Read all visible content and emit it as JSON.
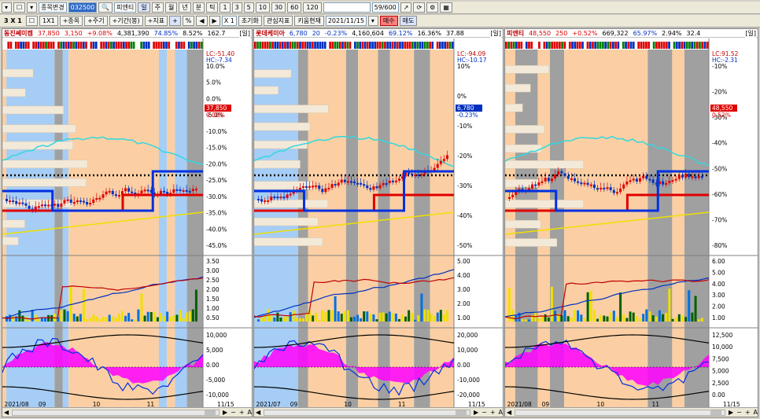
{
  "toolbar1": {
    "stock_change_label": "종목변경",
    "code_value": "032500",
    "name_value": "피엔티",
    "periods": [
      "주",
      "월",
      "년",
      "분",
      "틱"
    ],
    "minutes": [
      "1",
      "3",
      "5",
      "10",
      "30",
      "60",
      "120"
    ],
    "count_value": "59/600"
  },
  "toolbar2": {
    "layout_label": "3 X 1",
    "btn_1x1": "1X1",
    "add_stock": "+종목",
    "add_period": "+주기",
    "add_period_item": "+기간(봉)",
    "add_indicator": "+지표",
    "percent": "%",
    "zoom": "X 1",
    "reset": "초기화",
    "favorite_indicator": "관심지표",
    "keyword": "키움현재",
    "date_value": "2021/11/15",
    "buy": "매수",
    "sell": "매도"
  },
  "colors": {
    "shade_blue": "#a6cdf5",
    "shade_orange": "#fbcfa3",
    "shade_gray": "#a0a0a0",
    "candle_up": "#e00000",
    "candle_down": "#0030c0",
    "line_cyan": "#30d8e0",
    "line_yellow": "#f0e000",
    "line_red": "#e00000",
    "line_blue": "#0030e0",
    "magenta": "#ff00ff"
  },
  "panels": [
    {
      "name": "동진쎄미켐",
      "price": "37,850",
      "change": "3,150",
      "rate": "+9.08%",
      "volume": "4,381,390",
      "pct1": "74.85%",
      "pct2": "8.52%",
      "extra": "162.7",
      "badge": "[일]",
      "lc": "LC:-51.40",
      "hc": "HC:-7.34",
      "price_box": "37,850",
      "price_box2": "9.08%",
      "yticks": [
        "10.0%",
        "5.0%",
        "0.0%",
        "-5.0%",
        "-10.0%",
        "-15.0%",
        "-20.0%",
        "-25.0%",
        "-30.0%",
        "-35.0%",
        "-40.0%",
        "-45.0%"
      ],
      "vticks": [
        "3.50",
        "3.00",
        "2.50",
        "2.00",
        "1.50",
        "1.00",
        "0.50"
      ],
      "oticks": [
        "10,000",
        "5,000",
        "0.00",
        "-5,000",
        "-10,000"
      ],
      "xlabels": [
        "2021/08",
        "09",
        "10",
        "11"
      ],
      "end_label": "11/15"
    },
    {
      "name": "롯데케미아",
      "price": "6,780",
      "change": "20",
      "rate": "-0.23%",
      "volume": "4,160,604",
      "pct1": "69.12%",
      "pct2": "16.36%",
      "extra": "37.88",
      "badge": "[일]",
      "lc": "LC:-94.09",
      "hc": "HC:-10.17",
      "price_box": "6,780",
      "price_box2": "-0.23%",
      "yticks": [
        "10%",
        "0%",
        "-10%",
        "-20%",
        "-30%",
        "-40%",
        "-50%"
      ],
      "vticks": [
        "5.00",
        "4.00",
        "3.00",
        "2.00",
        "1.00"
      ],
      "oticks": [
        "20,000",
        "10,000",
        "0.00",
        "-10,000",
        "-20,000"
      ],
      "xlabels": [
        "2021/07",
        "09",
        "10",
        "11"
      ],
      "end_label": "11/15"
    },
    {
      "name": "피엔티",
      "price": "48,550",
      "change": "250",
      "rate": "+0.52%",
      "volume": "669,322",
      "pct1": "65.97%",
      "pct2": "2.94%",
      "extra": "32.4",
      "badge": "[일]",
      "lc": "LC:91.52",
      "hc": "HC:-2.31",
      "price_box": "48,550",
      "price_box2": "0.52%",
      "yticks": [
        "-10%",
        "-20%",
        "-30%",
        "-40%",
        "-50%",
        "-60%",
        "-70%",
        "-80%"
      ],
      "vticks": [
        "6.00",
        "5.00",
        "4.00",
        "3.00",
        "2.00",
        "1.00"
      ],
      "oticks": [
        "12,500",
        "10,000",
        "7,500",
        "5,000",
        "2,500",
        "0.00"
      ],
      "xlabels": [
        "2021/08",
        "09",
        "10",
        "11"
      ],
      "end_label": "11/15"
    }
  ]
}
